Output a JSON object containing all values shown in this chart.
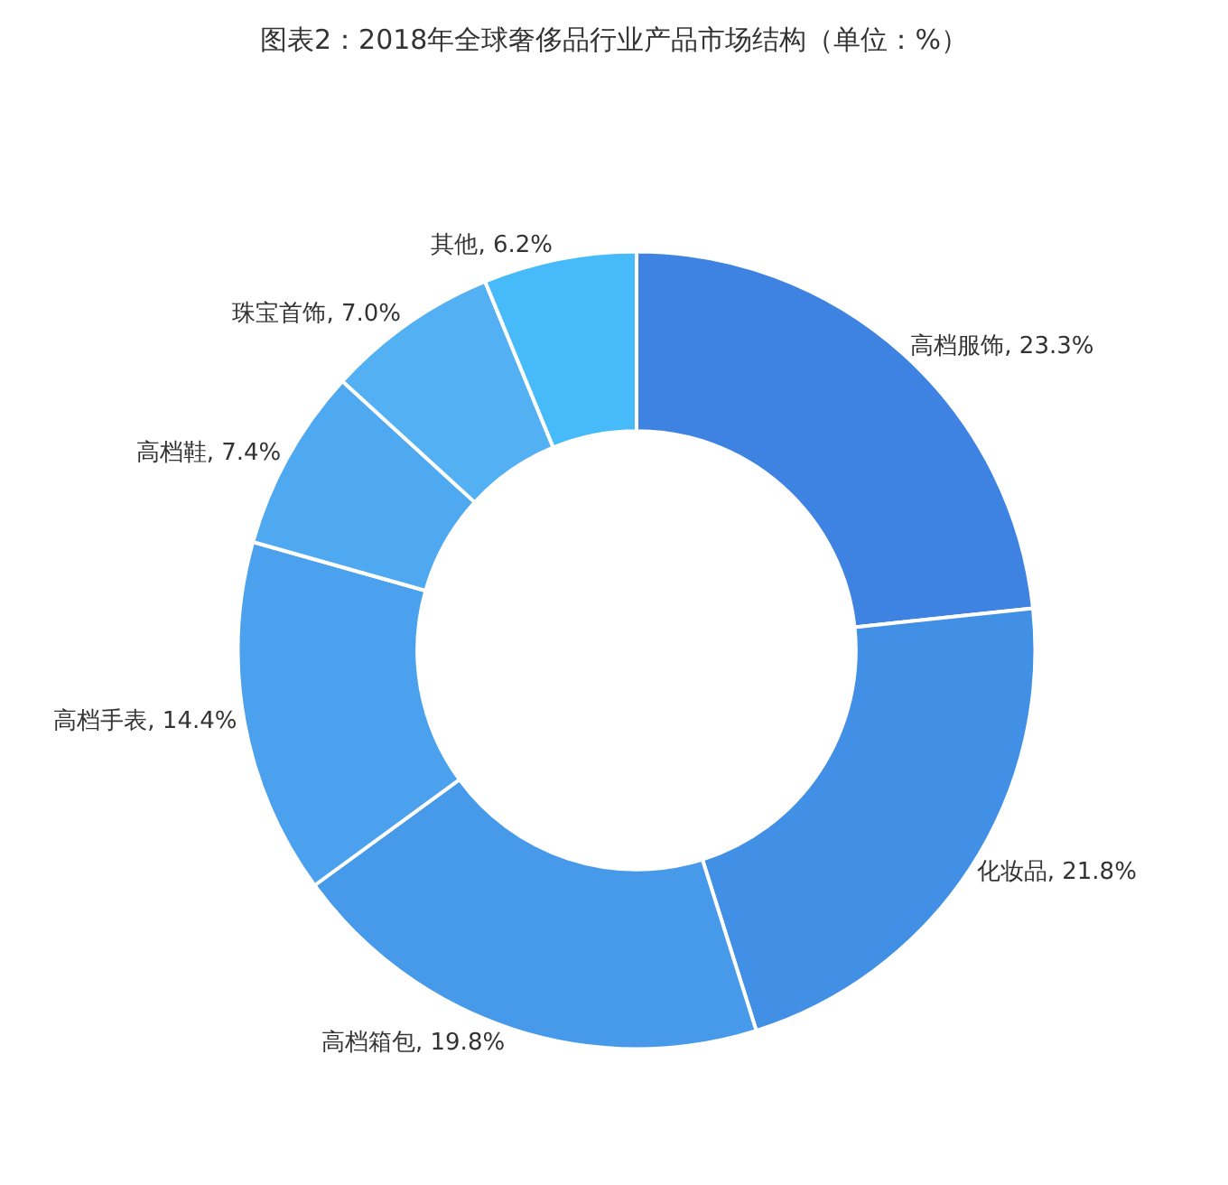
{
  "chart_data": {
    "type": "donut",
    "title": "图表2：2018年全球奢侈品行业产品市场结构（单位：%）",
    "categories": [
      "高档服饰",
      "化妆品",
      "高档箱包",
      "高档手表",
      "高档鞋",
      "珠宝首饰",
      "其他"
    ],
    "values": [
      23.3,
      21.8,
      19.8,
      14.4,
      7.4,
      7.0,
      6.2
    ],
    "value_labels": [
      "23.3%",
      "21.8%",
      "19.8%",
      "14.4%",
      "7.4%",
      "7.0%",
      "6.2%"
    ],
    "colors": [
      "#3f83e2",
      "#4290e6",
      "#4799ea",
      "#4ba1ee",
      "#4fa9f0",
      "#53b0f3",
      "#47bbf9"
    ],
    "legend": false
  }
}
